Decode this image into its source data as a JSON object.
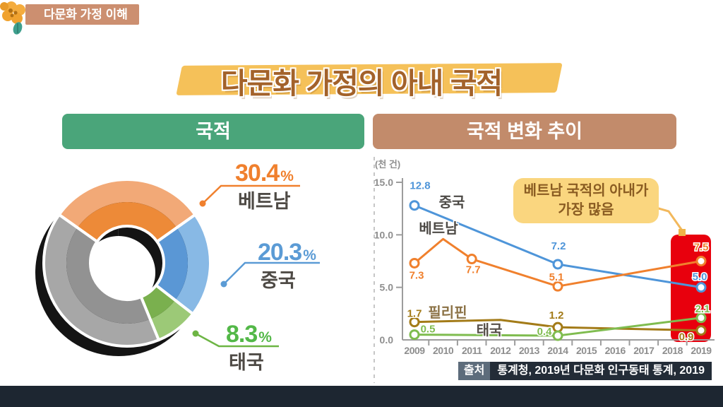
{
  "badge": {
    "label": "다문화 가정 이해"
  },
  "title": "다문화 가정의 아내 국적",
  "panels": {
    "left_header": "국적",
    "right_header": "국적 변화 추이"
  },
  "callout": {
    "line1": "베트남 국적의 아내가",
    "line2": "가장 많음"
  },
  "source": {
    "label": "출처",
    "text": "통계청, 2019년 다문화 인구동태 통계, 2019"
  },
  "colors": {
    "badge_bg": "#CC8F70",
    "title_text": "#A3622A",
    "title_highlight": "#F5C159",
    "left_header_bg": "#4AA57A",
    "right_header_bg": "#C28B6B",
    "highlight_red": "#E8000D",
    "callout_bg": "#FAD67F",
    "callout_text": "#8A5C22",
    "source_label_bg": "#5D6C7B",
    "source_text_bg": "#232C37",
    "bottom_bar": "#1D2631"
  },
  "chart_data": [
    {
      "type": "pie",
      "title": "국적",
      "unit": "%",
      "start_angle_deg": -54.7,
      "slices": [
        {
          "label": "베트남",
          "pct": "30.4",
          "value": 30.4,
          "color": "#ED8A38",
          "color_light": "#F2A977",
          "text_color": "#F0802D"
        },
        {
          "label": "중국",
          "pct": "20.3",
          "value": 20.3,
          "color": "#5A97D5",
          "color_light": "#88B9E5",
          "text_color": "#5B9BD5"
        },
        {
          "label": "태국",
          "pct": "8.3",
          "value": 8.3,
          "color": "#7AB04E",
          "color_light": "#9CC977",
          "text_color": "#53B848"
        },
        {
          "label": "",
          "pct": "",
          "value": 41.0,
          "color": "#929292",
          "color_light": "#A7A7A7",
          "text_color": "",
          "remainder": true
        }
      ]
    },
    {
      "type": "line",
      "ylabel": "(천 건)",
      "ylim": [
        0,
        15
      ],
      "yticks": [
        "0.0",
        "5.0",
        "10.0",
        "15.0"
      ],
      "x_years": [
        "2009",
        "2010",
        "2011",
        "2012",
        "2013",
        "2014",
        "2015",
        "2016",
        "2017",
        "2018",
        "2019"
      ],
      "highlight_year": "2019",
      "series": [
        {
          "name": "중국",
          "color": "#4E95D9",
          "name_color": "#4D4A46",
          "name_pos": [
            640,
            286
          ],
          "points": [
            {
              "year": 2009,
              "value": 12.8,
              "label": "12.8",
              "dx": 8,
              "dy": -28
            },
            {
              "year": 2014,
              "value": 7.2,
              "label": "7.2",
              "dx": 1,
              "dy": -26
            },
            {
              "year": 2019,
              "value": 5.0,
              "label": "5.0",
              "dx": -2,
              "dy": -15
            }
          ]
        },
        {
          "name": "베트남",
          "color": "#F0802D",
          "name_color": "#4D4A46",
          "name_pos": [
            621,
            323
          ],
          "points": [
            {
              "year": 2009,
              "value": 7.3,
              "label": "7.3",
              "dx": 3,
              "dy": 17
            },
            {
              "year": 2010,
              "value": 9.6,
              "label": "",
              "marker": false
            },
            {
              "year": 2011,
              "value": 7.7,
              "label": "7.7",
              "dx": 2,
              "dy": 15
            },
            {
              "year": 2014,
              "value": 5.1,
              "label": "5.1",
              "dx": -2,
              "dy": -13
            },
            {
              "year": 2019,
              "value": 7.5,
              "label": "7.5",
              "dx": 0,
              "dy": -20
            }
          ]
        },
        {
          "name": "필리핀",
          "color": "#A37B18",
          "name_color": "#8C7347",
          "name_pos": [
            634,
            442
          ],
          "points": [
            {
              "year": 2009,
              "value": 1.7,
              "label": "1.7",
              "dx": 0,
              "dy": -12
            },
            {
              "year": 2012,
              "value": 1.9,
              "label": "",
              "marker": false
            },
            {
              "year": 2014,
              "value": 1.2,
              "label": "1.2",
              "dx": -2,
              "dy": -17
            },
            {
              "year": 2019,
              "value": 0.9,
              "label": "0.9",
              "dx": -21,
              "dy": 9
            }
          ]
        },
        {
          "name": "태국",
          "color": "#7FBC4F",
          "name_color": "#57504A",
          "name_pos": [
            693,
            467
          ],
          "points": [
            {
              "year": 2009,
              "value": 0.5,
              "label": "0.5",
              "dx": 19,
              "dy": -8
            },
            {
              "year": 2014,
              "value": 0.4,
              "label": "0.4",
              "dx": -19,
              "dy": -6
            },
            {
              "year": 2019,
              "value": 2.1,
              "label": "2.1",
              "dx": 2,
              "dy": -13
            }
          ]
        }
      ]
    }
  ]
}
